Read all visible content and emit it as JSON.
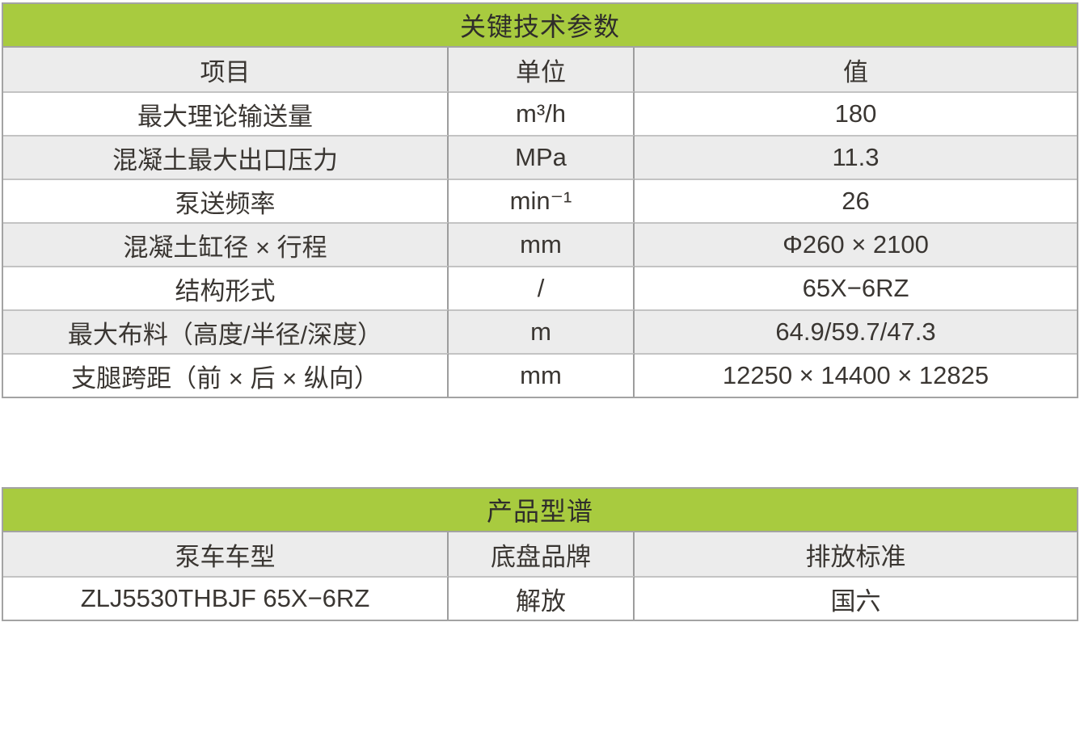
{
  "colors": {
    "title_green": "#a8cb3f",
    "row_gray": "#ececec",
    "row_white": "#ffffff",
    "border_outer": "#a3a3a3",
    "border_vertical": "#9d9d9d",
    "border_horizontal": "#c3c3c3",
    "text": "#3a3632"
  },
  "tables": [
    {
      "title": "关键技术参数",
      "columns": [
        "项目",
        "单位",
        "值"
      ],
      "rows": [
        [
          "最大理论输送量",
          "m³/h",
          "180"
        ],
        [
          "混凝土最大出口压力",
          "MPa",
          "11.3"
        ],
        [
          "泵送频率",
          "min⁻¹",
          "26"
        ],
        [
          "混凝土缸径 × 行程",
          "mm",
          "Φ260 × 2100"
        ],
        [
          "结构形式",
          "/",
          "65X−6RZ"
        ],
        [
          "最大布料（高度/半径/深度）",
          "m",
          "64.9/59.7/47.3"
        ],
        [
          "支腿跨距（前 × 后 × 纵向）",
          "mm",
          "12250 × 14400 × 12825"
        ]
      ]
    },
    {
      "title": "产品型谱",
      "columns": [
        "泵车车型",
        "底盘品牌",
        "排放标准"
      ],
      "rows": [
        [
          "ZLJ5530THBJF 65X−6RZ",
          "解放",
          "国六"
        ]
      ]
    }
  ]
}
